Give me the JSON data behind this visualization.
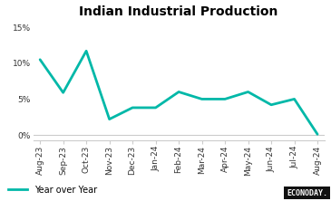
{
  "title": "Indian Industrial Production",
  "line_color": "#00b8a8",
  "background_color": "#ffffff",
  "legend_label": "Year over Year",
  "x_labels": [
    "Aug-23",
    "Sep-23",
    "Oct-23",
    "Nov-23",
    "Dec-23",
    "Jan-24",
    "Feb-24",
    "Mar-24",
    "Apr-24",
    "May-24",
    "Jun-24",
    "Jul-24",
    "Aug-24"
  ],
  "y_values": [
    10.5,
    5.9,
    11.7,
    2.2,
    3.8,
    3.8,
    6.0,
    5.0,
    5.0,
    6.0,
    4.2,
    5.0,
    0.1
  ],
  "ylim": [
    -0.8,
    16.0
  ],
  "yticks": [
    0,
    5,
    10,
    15
  ],
  "ytick_labels": [
    "0%",
    "5%",
    "10%",
    "15%"
  ],
  "line_width": 2.0,
  "title_fontsize": 10,
  "tick_fontsize": 6.5,
  "legend_fontsize": 7,
  "econoday_text": "ECONODAY.",
  "econoday_bg": "#111111",
  "econoday_text_color": "#ffffff",
  "spine_color": "#cccccc"
}
